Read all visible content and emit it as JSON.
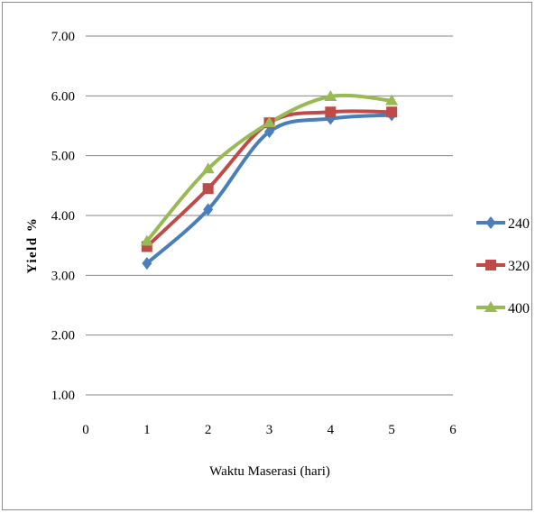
{
  "chart_data": {
    "type": "line",
    "title": "",
    "xlabel": "Waktu Maserasi (hari)",
    "ylabel": "Yield %",
    "xlim": [
      0,
      6
    ],
    "ylim": [
      1,
      7
    ],
    "x_ticks": [
      0,
      1,
      2,
      3,
      4,
      5,
      6
    ],
    "x_tick_labels": [
      "0",
      "1",
      "2",
      "3",
      "4",
      "5",
      "6"
    ],
    "y_ticks": [
      1,
      2,
      3,
      4,
      5,
      6,
      7
    ],
    "y_tick_labels": [
      "1.00",
      "2.00",
      "3.00",
      "4.00",
      "5.00",
      "6.00",
      "7.00"
    ],
    "grid": "horizontal",
    "legend_position": "right",
    "smooth": true,
    "x": [
      1,
      2,
      3,
      4,
      5
    ],
    "series": [
      {
        "name": "240",
        "values": [
          3.2,
          4.1,
          5.4,
          5.62,
          5.68
        ],
        "color": "#4a7ebb",
        "marker": "diamond"
      },
      {
        "name": "320",
        "values": [
          3.48,
          4.45,
          5.55,
          5.73,
          5.73
        ],
        "color": "#be4b48",
        "marker": "square"
      },
      {
        "name": "400",
        "values": [
          3.57,
          4.78,
          5.55,
          5.99,
          5.92
        ],
        "color": "#98b954",
        "marker": "triangle"
      }
    ]
  }
}
